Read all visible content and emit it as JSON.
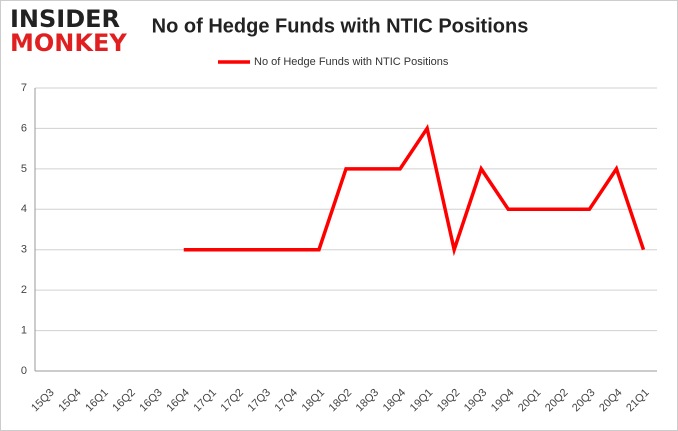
{
  "logo": {
    "top": "INSIDER",
    "bottom": "MONKEY"
  },
  "chart_data": {
    "type": "line",
    "title": "No of Hedge Funds with NTIC Positions",
    "categories": [
      "15Q3",
      "15Q4",
      "16Q1",
      "16Q2",
      "16Q3",
      "16Q4",
      "17Q1",
      "17Q2",
      "17Q3",
      "17Q4",
      "18Q1",
      "18Q2",
      "18Q3",
      "18Q4",
      "19Q1",
      "19Q2",
      "19Q3",
      "19Q4",
      "20Q1",
      "20Q2",
      "20Q3",
      "20Q4",
      "21Q1"
    ],
    "series": [
      {
        "name": "No of Hedge Funds with NTIC Positions",
        "color": "#ff0000",
        "values": [
          null,
          null,
          null,
          null,
          null,
          3,
          3,
          3,
          3,
          3,
          3,
          5,
          5,
          5,
          6,
          3,
          5,
          4,
          4,
          4,
          4,
          5,
          3
        ]
      }
    ],
    "ylim": [
      0,
      7
    ],
    "yticks": [
      0,
      1,
      2,
      3,
      4,
      5,
      6,
      7
    ],
    "grid": true,
    "legend": "top"
  }
}
